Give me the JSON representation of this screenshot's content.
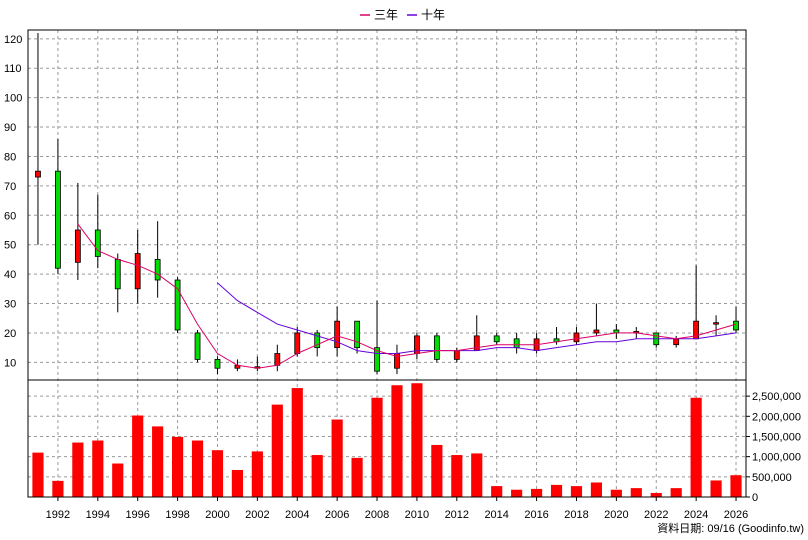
{
  "chart_data": {
    "type": "candlestick",
    "legend": [
      {
        "name": "三年",
        "color": "#dd0066"
      },
      {
        "name": "十年",
        "color": "#6600dd"
      }
    ],
    "price_axis": {
      "ylim": [
        4,
        123
      ],
      "ticks": [
        10,
        20,
        30,
        40,
        50,
        60,
        70,
        80,
        90,
        100,
        110,
        120
      ]
    },
    "volume_axis": {
      "ylim": [
        0,
        2900000
      ],
      "ticks": [
        0,
        500000,
        1000000,
        1500000,
        2000000,
        2500000
      ],
      "tick_labels": [
        "500,000",
        "1,000,000",
        "1,500,000",
        "2,000,000",
        "2,500,000"
      ]
    },
    "x_labels": [
      "1992",
      "1994",
      "1996",
      "1998",
      "2000",
      "2002",
      "2004",
      "2006",
      "2008",
      "2010",
      "2012",
      "2014",
      "2016",
      "2018",
      "2020",
      "2022",
      "2024",
      "2026"
    ],
    "x_range": [
      1990.5,
      2026.5
    ],
    "candles": [
      {
        "year": 1991,
        "open": 73,
        "close": 75,
        "high": 122,
        "low": 50
      },
      {
        "year": 1992,
        "open": 75,
        "close": 42,
        "high": 86,
        "low": 40
      },
      {
        "year": 1993,
        "open": 44,
        "close": 55,
        "high": 71,
        "low": 38
      },
      {
        "year": 1994,
        "open": 55,
        "close": 46,
        "high": 67,
        "low": 42
      },
      {
        "year": 1995,
        "open": 45,
        "close": 35,
        "high": 47,
        "low": 27
      },
      {
        "year": 1996,
        "open": 35,
        "close": 47,
        "high": 55,
        "low": 30
      },
      {
        "year": 1997,
        "open": 45,
        "close": 38,
        "high": 58,
        "low": 32
      },
      {
        "year": 1998,
        "open": 38,
        "close": 21,
        "high": 39,
        "low": 20
      },
      {
        "year": 1999,
        "open": 20,
        "close": 11,
        "high": 21,
        "low": 10
      },
      {
        "year": 2000,
        "open": 11,
        "close": 8,
        "high": 12,
        "low": 6
      },
      {
        "year": 2001,
        "open": 8,
        "close": 9,
        "high": 11,
        "low": 7
      },
      {
        "year": 2002,
        "open": 8,
        "close": 8.5,
        "high": 12,
        "low": 7
      },
      {
        "year": 2003,
        "open": 9,
        "close": 13,
        "high": 16,
        "low": 7
      },
      {
        "year": 2004,
        "open": 13,
        "close": 20,
        "high": 22,
        "low": 12
      },
      {
        "year": 2005,
        "open": 20,
        "close": 15,
        "high": 21,
        "low": 12
      },
      {
        "year": 2006,
        "open": 15,
        "close": 24,
        "high": 29,
        "low": 12
      },
      {
        "year": 2007,
        "open": 24,
        "close": 15,
        "high": 24,
        "low": 13
      },
      {
        "year": 2008,
        "open": 15,
        "close": 7,
        "high": 31,
        "low": 6
      },
      {
        "year": 2009,
        "open": 8,
        "close": 13,
        "high": 16,
        "low": 6
      },
      {
        "year": 2010,
        "open": 13,
        "close": 19,
        "high": 20,
        "low": 11
      },
      {
        "year": 2011,
        "open": 19,
        "close": 11,
        "high": 20,
        "low": 10
      },
      {
        "year": 2012,
        "open": 11,
        "close": 14,
        "high": 15,
        "low": 10
      },
      {
        "year": 2013,
        "open": 14,
        "close": 19,
        "high": 26,
        "low": 14
      },
      {
        "year": 2014,
        "open": 19,
        "close": 17,
        "high": 20,
        "low": 16
      },
      {
        "year": 2015,
        "open": 18,
        "close": 15,
        "high": 20,
        "low": 13
      },
      {
        "year": 2016,
        "open": 14,
        "close": 18,
        "high": 20,
        "low": 13
      },
      {
        "year": 2017,
        "open": 18,
        "close": 17,
        "high": 22,
        "low": 16
      },
      {
        "year": 2018,
        "open": 17,
        "close": 20,
        "high": 22,
        "low": 16
      },
      {
        "year": 2019,
        "open": 20,
        "close": 21,
        "high": 30,
        "low": 19
      },
      {
        "year": 2020,
        "open": 21,
        "close": 20,
        "high": 23,
        "low": 18
      },
      {
        "year": 2021,
        "open": 20,
        "close": 20.5,
        "high": 22,
        "low": 18
      },
      {
        "year": 2022,
        "open": 20,
        "close": 16,
        "high": 20,
        "low": 15
      },
      {
        "year": 2023,
        "open": 16,
        "close": 18,
        "high": 19,
        "low": 15
      },
      {
        "year": 2024,
        "open": 18,
        "close": 24,
        "high": 43,
        "low": 18
      },
      {
        "year": 2025,
        "open": 23,
        "close": 23.5,
        "high": 26,
        "low": 19
      },
      {
        "year": 2026,
        "open": 24,
        "close": 21,
        "high": 29,
        "low": 20
      }
    ],
    "ma_3yr": [
      {
        "year": 1993,
        "value": 57
      },
      {
        "year": 1994,
        "value": 48
      },
      {
        "year": 1995,
        "value": 45
      },
      {
        "year": 1996,
        "value": 43
      },
      {
        "year": 1997,
        "value": 40
      },
      {
        "year": 1998,
        "value": 35
      },
      {
        "year": 1999,
        "value": 23
      },
      {
        "year": 2000,
        "value": 13
      },
      {
        "year": 2001,
        "value": 9
      },
      {
        "year": 2002,
        "value": 8
      },
      {
        "year": 2003,
        "value": 9
      },
      {
        "year": 2004,
        "value": 13
      },
      {
        "year": 2005,
        "value": 16
      },
      {
        "year": 2006,
        "value": 19
      },
      {
        "year": 2007,
        "value": 17
      },
      {
        "year": 2008,
        "value": 14
      },
      {
        "year": 2009,
        "value": 12
      },
      {
        "year": 2010,
        "value": 13
      },
      {
        "year": 2011,
        "value": 14
      },
      {
        "year": 2012,
        "value": 14
      },
      {
        "year": 2013,
        "value": 15
      },
      {
        "year": 2014,
        "value": 16
      },
      {
        "year": 2015,
        "value": 16
      },
      {
        "year": 2016,
        "value": 16
      },
      {
        "year": 2017,
        "value": 17
      },
      {
        "year": 2018,
        "value": 18
      },
      {
        "year": 2019,
        "value": 19
      },
      {
        "year": 2020,
        "value": 20
      },
      {
        "year": 2021,
        "value": 20
      },
      {
        "year": 2022,
        "value": 19
      },
      {
        "year": 2023,
        "value": 18
      },
      {
        "year": 2024,
        "value": 19
      },
      {
        "year": 2025,
        "value": 21
      },
      {
        "year": 2026,
        "value": 23
      }
    ],
    "ma_10yr": [
      {
        "year": 2000,
        "value": 37
      },
      {
        "year": 2001,
        "value": 31
      },
      {
        "year": 2002,
        "value": 27
      },
      {
        "year": 2003,
        "value": 23
      },
      {
        "year": 2004,
        "value": 21
      },
      {
        "year": 2005,
        "value": 19
      },
      {
        "year": 2006,
        "value": 17
      },
      {
        "year": 2007,
        "value": 14
      },
      {
        "year": 2008,
        "value": 13
      },
      {
        "year": 2009,
        "value": 13
      },
      {
        "year": 2010,
        "value": 14
      },
      {
        "year": 2011,
        "value": 14
      },
      {
        "year": 2012,
        "value": 14
      },
      {
        "year": 2013,
        "value": 14
      },
      {
        "year": 2014,
        "value": 15
      },
      {
        "year": 2015,
        "value": 15
      },
      {
        "year": 2016,
        "value": 14
      },
      {
        "year": 2017,
        "value": 15
      },
      {
        "year": 2018,
        "value": 16
      },
      {
        "year": 2019,
        "value": 17
      },
      {
        "year": 2020,
        "value": 17
      },
      {
        "year": 2021,
        "value": 18
      },
      {
        "year": 2022,
        "value": 18
      },
      {
        "year": 2023,
        "value": 18
      },
      {
        "year": 2024,
        "value": 18
      },
      {
        "year": 2025,
        "value": 19
      },
      {
        "year": 2026,
        "value": 20
      }
    ],
    "volumes": [
      {
        "year": 1991,
        "value": 1100000
      },
      {
        "year": 1992,
        "value": 400000
      },
      {
        "year": 1993,
        "value": 1350000
      },
      {
        "year": 1994,
        "value": 1400000
      },
      {
        "year": 1995,
        "value": 830000
      },
      {
        "year": 1996,
        "value": 2020000
      },
      {
        "year": 1997,
        "value": 1750000
      },
      {
        "year": 1998,
        "value": 1490000
      },
      {
        "year": 1999,
        "value": 1400000
      },
      {
        "year": 2000,
        "value": 1160000
      },
      {
        "year": 2001,
        "value": 670000
      },
      {
        "year": 2002,
        "value": 1130000
      },
      {
        "year": 2003,
        "value": 2290000
      },
      {
        "year": 2004,
        "value": 2700000
      },
      {
        "year": 2005,
        "value": 1040000
      },
      {
        "year": 2006,
        "value": 1920000
      },
      {
        "year": 2007,
        "value": 970000
      },
      {
        "year": 2008,
        "value": 2460000
      },
      {
        "year": 2009,
        "value": 2770000
      },
      {
        "year": 2010,
        "value": 2820000
      },
      {
        "year": 2011,
        "value": 1290000
      },
      {
        "year": 2012,
        "value": 1040000
      },
      {
        "year": 2013,
        "value": 1080000
      },
      {
        "year": 2014,
        "value": 270000
      },
      {
        "year": 2015,
        "value": 180000
      },
      {
        "year": 2016,
        "value": 200000
      },
      {
        "year": 2017,
        "value": 300000
      },
      {
        "year": 2018,
        "value": 270000
      },
      {
        "year": 2019,
        "value": 360000
      },
      {
        "year": 2020,
        "value": 180000
      },
      {
        "year": 2021,
        "value": 220000
      },
      {
        "year": 2022,
        "value": 100000
      },
      {
        "year": 2023,
        "value": 220000
      },
      {
        "year": 2024,
        "value": 2460000
      },
      {
        "year": 2025,
        "value": 410000
      },
      {
        "year": 2026,
        "value": 540000
      }
    ],
    "colors": {
      "up": "#ff0000",
      "down": "#00dd00",
      "volume": "#ff0000",
      "grid": "#9a9a9a"
    },
    "footer": "資料日期: 09/16 (Goodinfo.tw)"
  }
}
